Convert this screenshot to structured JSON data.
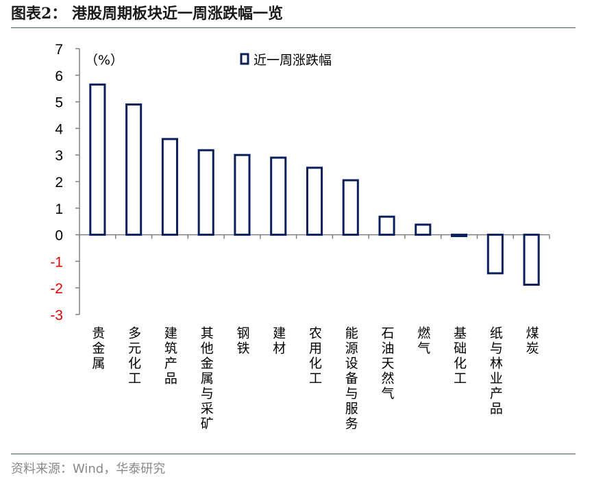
{
  "header": {
    "title": "图表2：  港股周期板块近一周涨跌幅一览"
  },
  "footer": {
    "source": "资料来源：Wind，华泰研究"
  },
  "colors": {
    "bar_stroke": "#0a1f5c",
    "negative_tick": "#e60000",
    "axis": "#808080",
    "rule": "#3d5a73"
  },
  "chart_data": {
    "type": "bar",
    "unit_label": "（%）",
    "legend": "近一周涨跌幅",
    "legend_position": "top-center",
    "grid": false,
    "ylim": [
      -3,
      7
    ],
    "yticks": [
      "7",
      "6",
      "5",
      "4",
      "3",
      "2",
      "1",
      "0",
      "-1",
      "-2",
      "-3"
    ],
    "categories": [
      "贵金属",
      "多元化工",
      "建筑产品",
      "其他金属与采矿",
      "钢铁",
      "建材",
      "农用化工",
      "能源设备与服务",
      "石油天然气",
      "燃气",
      "基础化工",
      "纸与林业产品",
      "煤炭"
    ],
    "values": [
      5.65,
      4.9,
      3.6,
      3.18,
      3.0,
      2.9,
      2.52,
      2.05,
      0.68,
      0.38,
      -0.05,
      -1.45,
      -1.88
    ]
  }
}
